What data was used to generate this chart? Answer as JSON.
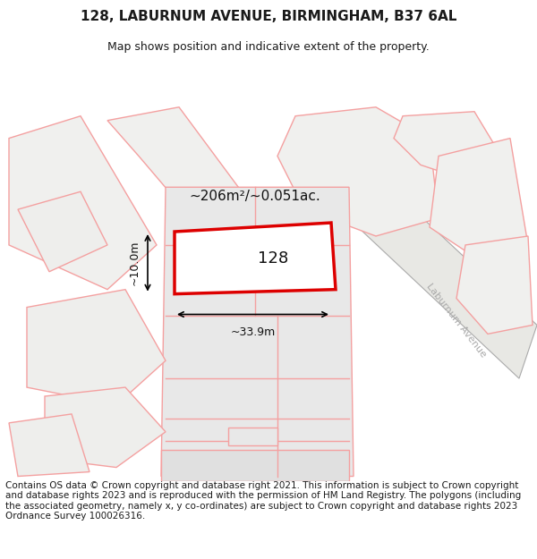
{
  "title": "128, LABURNUM AVENUE, BIRMINGHAM, B37 6AL",
  "subtitle": "Map shows position and indicative extent of the property.",
  "footer": "Contains OS data © Crown copyright and database right 2021. This information is subject to Crown copyright and database rights 2023 and is reproduced with the permission of HM Land Registry. The polygons (including the associated geometry, namely x, y co-ordinates) are subject to Crown copyright and database rights 2023 Ordnance Survey 100026316.",
  "area_label": "~206m²/~0.051ac.",
  "width_label": "~33.9m",
  "height_label": "~10.0m",
  "plot_number": "128",
  "bg_color": "#ffffff",
  "map_bg": "#f5f5f5",
  "pink_color": "#f4a0a0",
  "pink_fill": "#fce8e8",
  "gray_fill": "#e8e8e8",
  "red_color": "#ee0000",
  "road_label_color": "#aaaaaa",
  "title_color": "#1a1a1a",
  "title_fontsize": 11,
  "subtitle_fontsize": 9,
  "footer_fontsize": 7.5
}
